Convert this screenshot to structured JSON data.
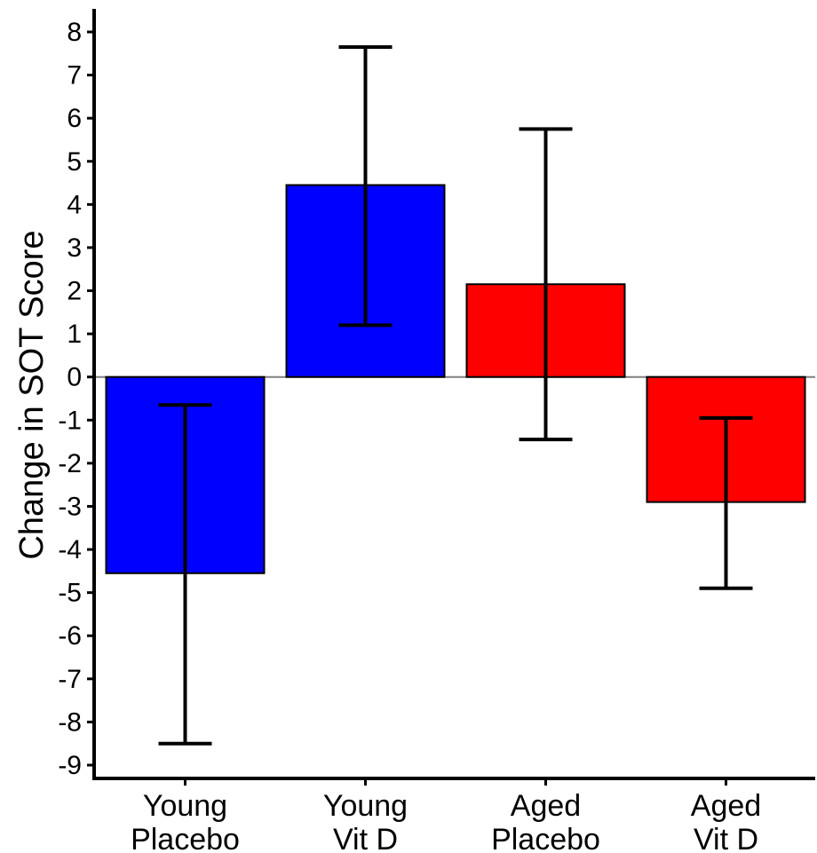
{
  "chart_data": {
    "type": "bar",
    "title": "",
    "xlabel": "",
    "ylabel": "Change in SOT Score",
    "ylim": [
      -9.2,
      8.4
    ],
    "yticks": [
      8,
      7,
      6,
      5,
      4,
      3,
      2,
      1,
      0,
      -1,
      -2,
      -3,
      -4,
      -5,
      -6,
      -7,
      -8,
      -9
    ],
    "categories": [
      [
        "Young",
        "Placebo"
      ],
      [
        "Young",
        "Vit D"
      ],
      [
        "Aged",
        "Placebo"
      ],
      [
        "Aged",
        "Vit D"
      ]
    ],
    "values": [
      -4.55,
      4.45,
      2.15,
      -2.9
    ],
    "error_low": [
      -8.5,
      1.2,
      -1.45,
      -4.9
    ],
    "error_high": [
      -0.65,
      7.65,
      5.75,
      -0.95
    ],
    "colors": [
      "#0000ff",
      "#0000ff",
      "#ff0000",
      "#ff0000"
    ],
    "zero_line_color": "#808080",
    "grid": false,
    "legend": "none"
  }
}
